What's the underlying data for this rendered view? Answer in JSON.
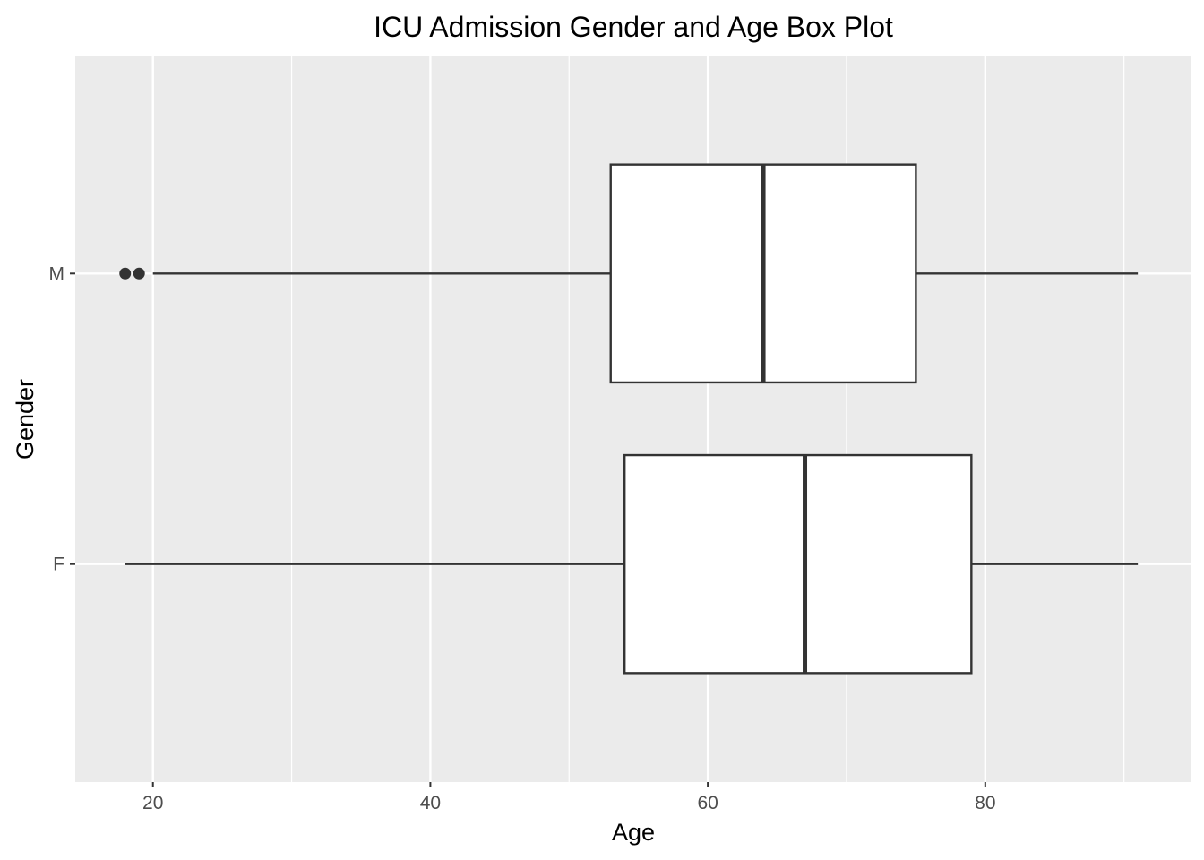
{
  "chart_data": {
    "type": "boxplot",
    "title": "ICU Admission Gender and Age Box Plot",
    "xlabel": "Age",
    "ylabel": "Gender",
    "xlim": [
      14.4,
      94.8
    ],
    "x_ticks": [
      20,
      40,
      60,
      80
    ],
    "x_minor_ticks": [
      30,
      50,
      70,
      90
    ],
    "categories": [
      "F",
      "M"
    ],
    "orientation": "horizontal",
    "grid": true,
    "colors": {
      "panel_background": "#ebebeb",
      "grid": "#ffffff",
      "box_fill": "#ffffff",
      "box_stroke": "#333333",
      "outlier": "#333333"
    },
    "boxes": [
      {
        "category": "F",
        "whisker_low": 18,
        "q1": 54,
        "median": 67,
        "q3": 79,
        "whisker_high": 91,
        "outliers": []
      },
      {
        "category": "M",
        "whisker_low": 20,
        "q1": 53,
        "median": 64,
        "q3": 75,
        "whisker_high": 91,
        "outliers": [
          18,
          19
        ]
      }
    ]
  }
}
